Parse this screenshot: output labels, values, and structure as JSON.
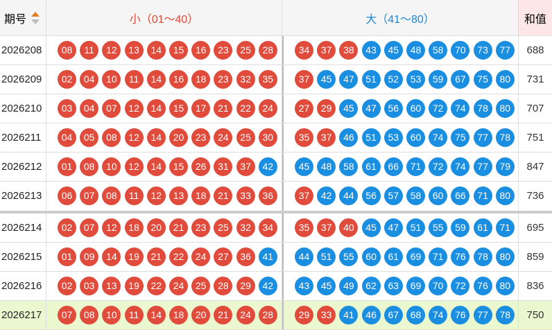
{
  "header": {
    "period": "期号",
    "small": "小（01～40）",
    "big": "大（41～80）",
    "sum": "和值"
  },
  "rows": [
    {
      "period": "2026208",
      "small": [
        "08",
        "11",
        "12",
        "13",
        "14",
        "15",
        "16",
        "23",
        "25",
        "28"
      ],
      "big": [
        "34",
        "37",
        "38",
        "43",
        "45",
        "48",
        "58",
        "70",
        "73",
        "77"
      ],
      "sum": "688"
    },
    {
      "period": "2026209",
      "small": [
        "02",
        "04",
        "10",
        "11",
        "14",
        "16",
        "18",
        "23",
        "32",
        "35"
      ],
      "big": [
        "37",
        "45",
        "47",
        "51",
        "52",
        "53",
        "59",
        "67",
        "75",
        "80"
      ],
      "sum": "731"
    },
    {
      "period": "2026210",
      "small": [
        "03",
        "04",
        "07",
        "12",
        "14",
        "15",
        "17",
        "21",
        "22",
        "24"
      ],
      "big": [
        "27",
        "29",
        "45",
        "47",
        "56",
        "60",
        "72",
        "74",
        "78",
        "80"
      ],
      "sum": "707"
    },
    {
      "period": "2026211",
      "small": [
        "04",
        "05",
        "08",
        "12",
        "14",
        "20",
        "23",
        "24",
        "25",
        "30"
      ],
      "big": [
        "35",
        "37",
        "46",
        "51",
        "53",
        "60",
        "74",
        "75",
        "77",
        "78"
      ],
      "sum": "751"
    },
    {
      "period": "2026212",
      "small": [
        "01",
        "08",
        "10",
        "12",
        "14",
        "15",
        "26",
        "31",
        "37",
        "42"
      ],
      "big": [
        "45",
        "48",
        "58",
        "61",
        "66",
        "71",
        "72",
        "74",
        "77",
        "79"
      ],
      "sum": "847"
    },
    {
      "period": "2026213",
      "small": [
        "06",
        "07",
        "08",
        "11",
        "12",
        "13",
        "18",
        "21",
        "33",
        "36"
      ],
      "big": [
        "37",
        "42",
        "44",
        "56",
        "57",
        "58",
        "60",
        "66",
        "71",
        "80"
      ],
      "sum": "736"
    },
    {
      "period": "2026214",
      "small": [
        "02",
        "07",
        "12",
        "18",
        "20",
        "21",
        "23",
        "25",
        "32",
        "34"
      ],
      "big": [
        "35",
        "37",
        "40",
        "45",
        "47",
        "51",
        "55",
        "59",
        "61",
        "71"
      ],
      "sum": "695"
    },
    {
      "period": "2026215",
      "small": [
        "01",
        "09",
        "14",
        "19",
        "21",
        "22",
        "24",
        "27",
        "36",
        "41"
      ],
      "big": [
        "44",
        "51",
        "55",
        "60",
        "61",
        "69",
        "71",
        "76",
        "78",
        "80"
      ],
      "sum": "859"
    },
    {
      "period": "2026216",
      "small": [
        "02",
        "03",
        "13",
        "19",
        "22",
        "24",
        "25",
        "28",
        "29",
        "42"
      ],
      "big": [
        "43",
        "45",
        "49",
        "62",
        "63",
        "69",
        "70",
        "72",
        "76",
        "80"
      ],
      "sum": "836"
    },
    {
      "period": "2026217",
      "small": [
        "07",
        "08",
        "10",
        "11",
        "14",
        "18",
        "20",
        "21",
        "24",
        "28"
      ],
      "big": [
        "29",
        "33",
        "41",
        "46",
        "67",
        "68",
        "74",
        "76",
        "77",
        "78"
      ],
      "sum": "750"
    }
  ]
}
